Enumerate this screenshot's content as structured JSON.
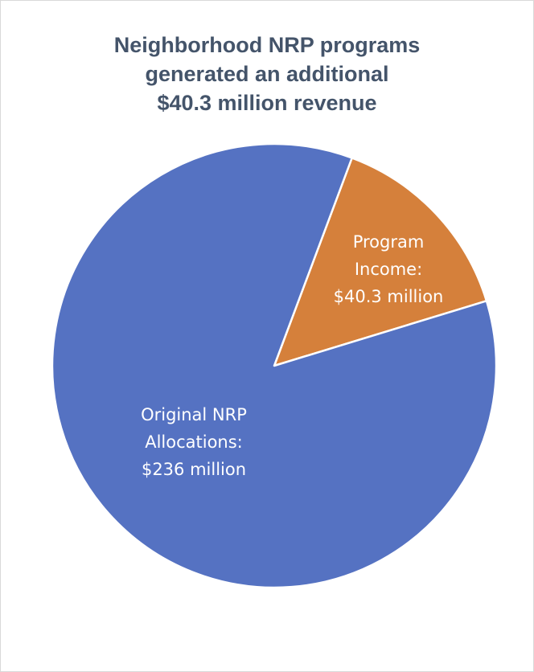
{
  "chart_data": {
    "type": "pie",
    "title": [
      "Neighborhood NRP programs",
      "generated an additional",
      "$40.3 million revenue"
    ],
    "slices": [
      {
        "name": "Program Income",
        "value": 40.3,
        "unit": "million",
        "color": "#d5803b",
        "label_lines": [
          "Program",
          "Income:",
          "$40.3 million"
        ]
      },
      {
        "name": "Original NRP Allocations",
        "value": 236,
        "unit": "million",
        "color": "#5572c2",
        "label_lines": [
          "Original NRP",
          "Allocations:",
          "$236 million"
        ]
      }
    ],
    "start_angle_deg": 20.5,
    "legend": "none"
  }
}
